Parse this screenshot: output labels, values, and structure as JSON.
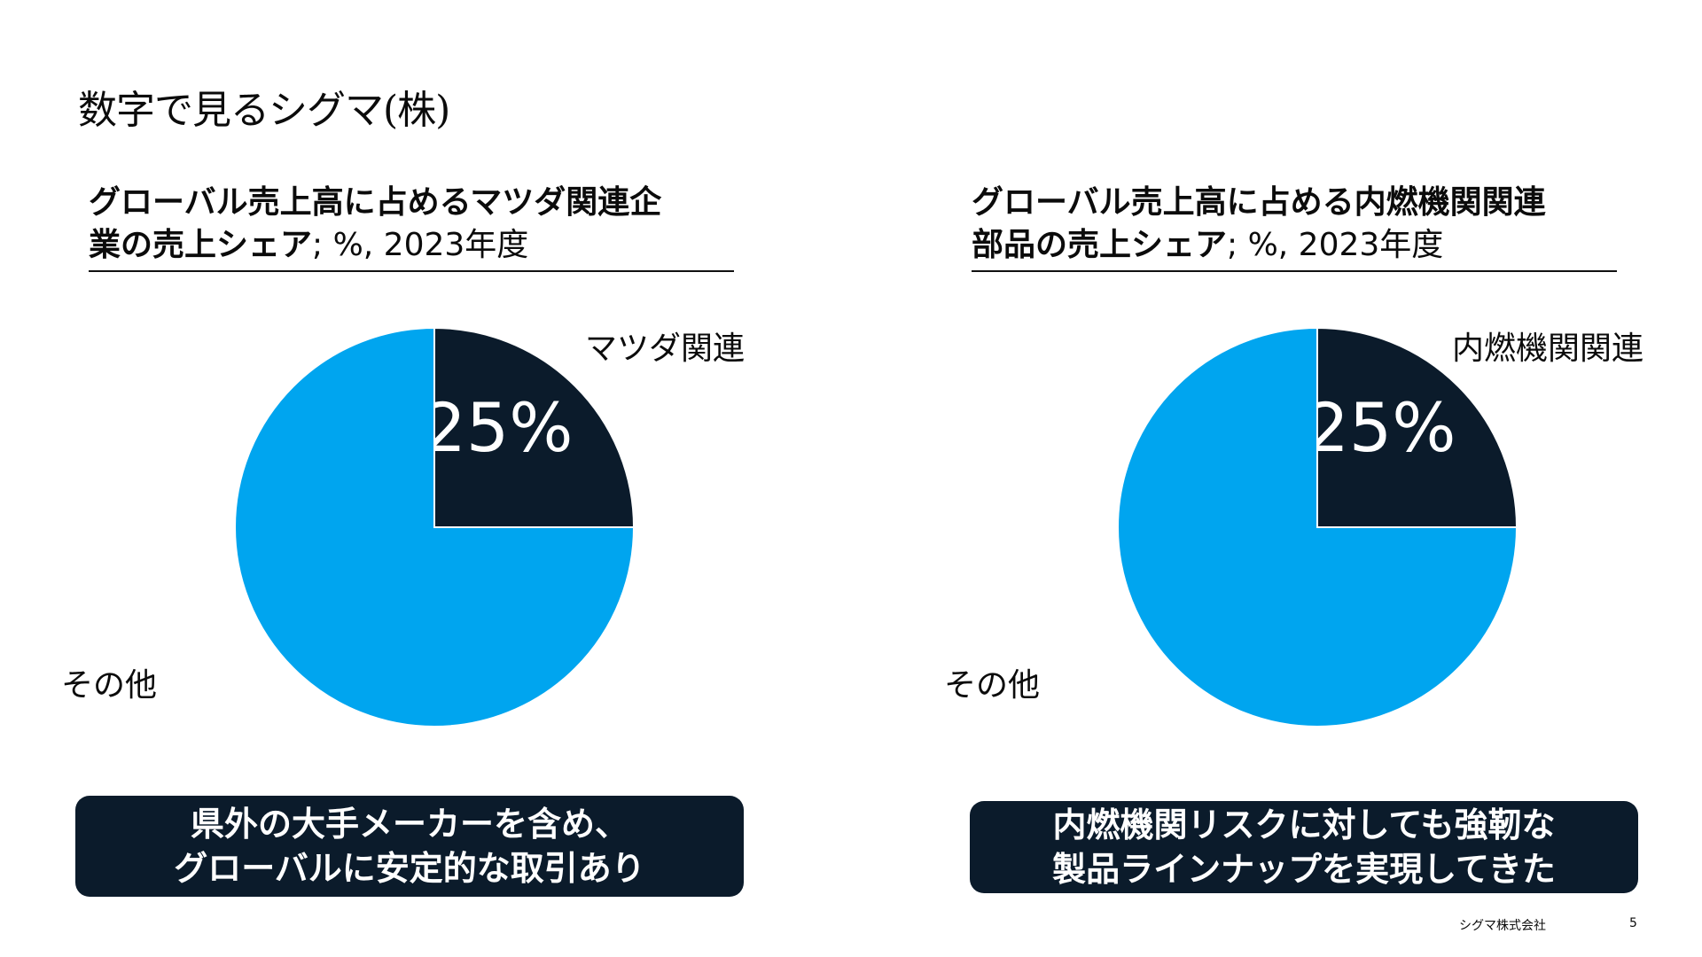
{
  "slide": {
    "title": "数字で見るシグマ(株)"
  },
  "colors": {
    "dark": "#0b1b2b",
    "accent": "#00a5ef",
    "background": "#ffffff"
  },
  "chart_data": [
    {
      "type": "pie",
      "title_strong_line1": "グローバル売上高に占めるマツダ関連企",
      "title_strong_line2": "業の売上シェア",
      "title_normal": "; %, 2023年度",
      "slices": [
        {
          "label": "マツダ関連",
          "value": 25,
          "value_label": "25%",
          "color": "#0b1b2b"
        },
        {
          "label": "その他",
          "value": 75,
          "value_label": "",
          "color": "#00a5ef"
        }
      ],
      "callout_line1": "県外の大手メーカーを含め、",
      "callout_line2": "グローバルに安定的な取引あり"
    },
    {
      "type": "pie",
      "title_strong_line1": "グローバル売上高に占める内燃機関関連",
      "title_strong_line2": "部品の売上シェア",
      "title_normal": "; %, 2023年度",
      "slices": [
        {
          "label": "内燃機関関連",
          "value": 25,
          "value_label": "25%",
          "color": "#0b1b2b"
        },
        {
          "label": "その他",
          "value": 75,
          "value_label": "",
          "color": "#00a5ef"
        }
      ],
      "callout_line1": "内燃機関リスクに対しても強靭な",
      "callout_line2": "製品ラインナップを実現してきた"
    }
  ],
  "footer": {
    "company": "シグマ株式会社",
    "page": "5"
  }
}
